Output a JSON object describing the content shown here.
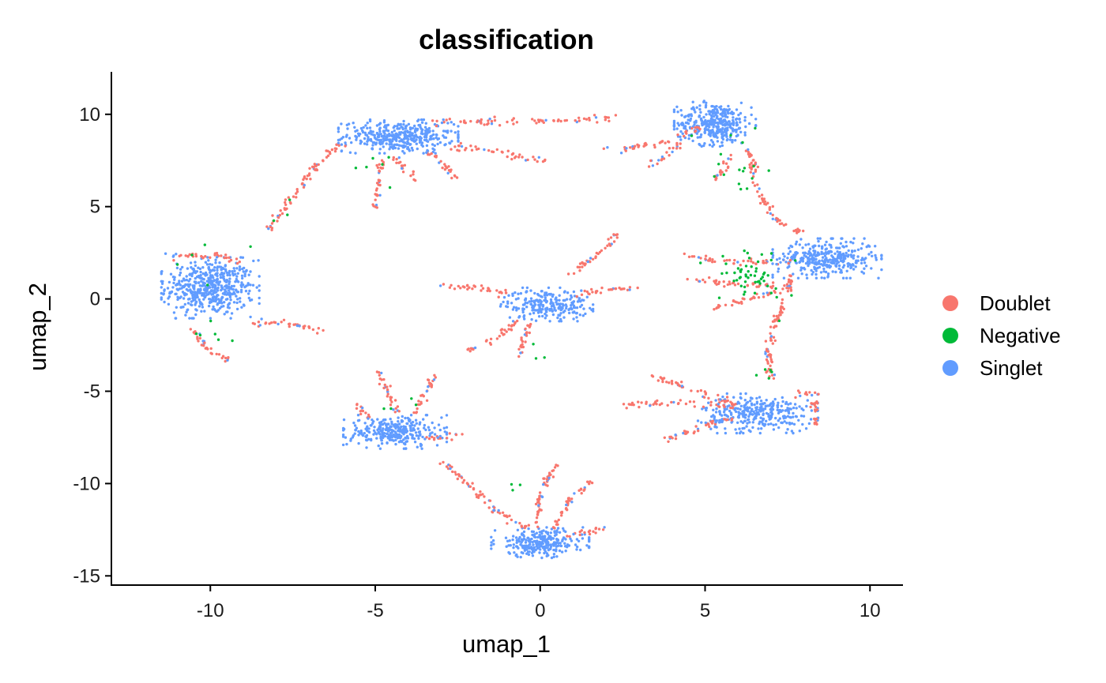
{
  "chart_data": {
    "type": "scatter",
    "title": "classification",
    "xlabel": "umap_1",
    "ylabel": "umap_2",
    "xlim": [
      -13,
      11
    ],
    "ylim": [
      -15.5,
      12.3
    ],
    "xticks": [
      -10,
      -5,
      0,
      5,
      10
    ],
    "yticks": [
      -15,
      -10,
      -5,
      0,
      5,
      10
    ],
    "grid": false,
    "legend": {
      "position": "right",
      "entries": [
        "Doublet",
        "Negative",
        "Singlet"
      ]
    },
    "colors": {
      "Doublet": "#F8766D",
      "Negative": "#00BA38",
      "Singlet": "#619CFF"
    },
    "series": [
      {
        "name": "Singlet",
        "clusters": [
          {
            "center": [
              -10.0,
              0.6
            ],
            "spread": [
              0.9,
              1.0
            ],
            "n": 520
          },
          {
            "center": [
              -4.3,
              8.8
            ],
            "spread": [
              1.1,
              0.55
            ],
            "n": 380
          },
          {
            "center": [
              5.3,
              9.5
            ],
            "spread": [
              0.75,
              0.75
            ],
            "n": 360
          },
          {
            "center": [
              8.7,
              2.2
            ],
            "spread": [
              1.0,
              0.65
            ],
            "n": 340
          },
          {
            "center": [
              0.2,
              -0.3
            ],
            "spread": [
              0.85,
              0.55
            ],
            "n": 240
          },
          {
            "center": [
              6.6,
              -6.2
            ],
            "spread": [
              1.1,
              0.65
            ],
            "n": 330
          },
          {
            "center": [
              -4.4,
              -7.2
            ],
            "spread": [
              0.95,
              0.55
            ],
            "n": 300
          },
          {
            "center": [
              0.0,
              -13.2
            ],
            "spread": [
              0.9,
              0.5
            ],
            "n": 280
          }
        ]
      },
      {
        "name": "Doublet",
        "trails": [
          [
            [
              -6.0,
              8.5
            ],
            [
              -6.8,
              7.2
            ],
            [
              -7.5,
              5.5
            ],
            [
              -8.2,
              3.8
            ]
          ],
          [
            [
              -3.2,
              9.6
            ],
            [
              -1.8,
              9.6
            ],
            [
              -0.6,
              9.6
            ]
          ],
          [
            [
              -2.6,
              8.3
            ],
            [
              -1.2,
              8.0
            ],
            [
              0.2,
              7.4
            ]
          ],
          [
            [
              -3.4,
              8.0
            ],
            [
              -2.5,
              6.5
            ]
          ],
          [
            [
              -4.8,
              7.5
            ],
            [
              -5.0,
              5.0
            ]
          ],
          [
            [
              -4.4,
              7.6
            ],
            [
              -3.7,
              6.4
            ]
          ],
          [
            [
              -0.2,
              9.6
            ],
            [
              1.2,
              9.7
            ],
            [
              2.2,
              9.8
            ]
          ],
          [
            [
              4.8,
              9.2
            ],
            [
              3.6,
              8.4
            ],
            [
              2.0,
              8.1
            ]
          ],
          [
            [
              4.2,
              8.3
            ],
            [
              3.3,
              7.2
            ]
          ],
          [
            [
              5.8,
              7.6
            ],
            [
              5.3,
              6.3
            ]
          ],
          [
            [
              6.3,
              8.2
            ],
            [
              6.6,
              5.9
            ],
            [
              7.2,
              4.2
            ],
            [
              8.0,
              3.5
            ]
          ],
          [
            [
              4.4,
              2.3
            ],
            [
              5.6,
              2.0
            ],
            [
              7.6,
              2.0
            ]
          ],
          [
            [
              4.4,
              1.1
            ],
            [
              5.8,
              0.8
            ],
            [
              7.3,
              0.7
            ]
          ],
          [
            [
              5.2,
              -0.5
            ],
            [
              6.2,
              -0.1
            ],
            [
              7.6,
              0.6
            ]
          ],
          [
            [
              7.6,
              1.2
            ],
            [
              7.2,
              -1.0
            ],
            [
              6.9,
              -2.8
            ],
            [
              7.0,
              -4.5
            ]
          ],
          [
            [
              3.4,
              -4.2
            ],
            [
              5.0,
              -5.1
            ],
            [
              6.0,
              -5.8
            ]
          ],
          [
            [
              2.5,
              -5.7
            ],
            [
              4.5,
              -5.6
            ],
            [
              6.0,
              -5.8
            ]
          ],
          [
            [
              3.8,
              -7.6
            ],
            [
              5.0,
              -6.8
            ],
            [
              6.2,
              -6.4
            ]
          ],
          [
            [
              7.8,
              -5.2
            ],
            [
              8.3,
              -5.1
            ],
            [
              8.4,
              -6.9
            ]
          ],
          [
            [
              -11.6,
              2.3
            ],
            [
              -9.7,
              2.4
            ],
            [
              -9.2,
              2.0
            ]
          ],
          [
            [
              -8.8,
              -1.3
            ],
            [
              -7.4,
              -1.4
            ],
            [
              -6.5,
              -1.9
            ]
          ],
          [
            [
              -10.6,
              -1.5
            ],
            [
              -10.1,
              -2.7
            ],
            [
              -9.4,
              -3.3
            ]
          ],
          [
            [
              -0.8,
              0.2
            ],
            [
              -1.8,
              0.6
            ],
            [
              -3.0,
              0.7
            ]
          ],
          [
            [
              0.9,
              1.3
            ],
            [
              1.9,
              2.6
            ],
            [
              2.3,
              3.5
            ]
          ],
          [
            [
              -0.6,
              -1.2
            ],
            [
              -1.5,
              -2.3
            ],
            [
              -2.2,
              -2.8
            ]
          ],
          [
            [
              -0.3,
              -1.4
            ],
            [
              -0.7,
              -3.2
            ]
          ],
          [
            [
              1.1,
              0.3
            ],
            [
              2.2,
              0.5
            ],
            [
              3.0,
              0.6
            ]
          ],
          [
            [
              -5.1,
              -6.6
            ],
            [
              -5.6,
              -5.7
            ]
          ],
          [
            [
              -4.3,
              -6.1
            ],
            [
              -4.9,
              -4.0
            ]
          ],
          [
            [
              -3.8,
              -6.2
            ],
            [
              -3.2,
              -4.2
            ]
          ],
          [
            [
              -3.4,
              -7.6
            ],
            [
              -2.3,
              -7.3
            ]
          ],
          [
            [
              -0.3,
              -12.5
            ],
            [
              -1.4,
              -11.4
            ],
            [
              -2.3,
              -9.8
            ],
            [
              -3.0,
              -8.8
            ]
          ],
          [
            [
              -0.1,
              -12.3
            ],
            [
              0.0,
              -10.5
            ],
            [
              0.5,
              -9.0
            ]
          ],
          [
            [
              0.4,
              -12.4
            ],
            [
              1.0,
              -10.6
            ],
            [
              1.6,
              -10.0
            ]
          ],
          [
            [
              0.8,
              -12.8
            ],
            [
              2.0,
              -12.4
            ]
          ]
        ]
      },
      {
        "name": "Negative",
        "regions": [
          {
            "center": [
              6.4,
              1.0
            ],
            "spread": [
              0.55,
              0.7
            ],
            "n": 55
          },
          {
            "center": [
              5.9,
              6.6
            ],
            "spread": [
              0.4,
              0.35
            ],
            "n": 12
          },
          {
            "center": [
              -4.9,
              7.2
            ],
            "spread": [
              0.4,
              0.4
            ],
            "n": 6
          },
          {
            "center": [
              -9.9,
              -1.9
            ],
            "spread": [
              0.4,
              0.5
            ],
            "n": 6
          },
          {
            "center": [
              6.8,
              -4.0
            ],
            "spread": [
              0.25,
              0.2
            ],
            "n": 5
          },
          {
            "center": [
              -0.6,
              -10.0
            ],
            "spread": [
              0.3,
              0.2
            ],
            "n": 3
          },
          {
            "center": [
              -4.2,
              -5.9
            ],
            "spread": [
              0.4,
              0.3
            ],
            "n": 4
          },
          {
            "center": [
              0.0,
              -2.3
            ],
            "spread": [
              0.6,
              0.6
            ],
            "n": 3
          },
          {
            "center": [
              -10.4,
              2.0
            ],
            "spread": [
              0.8,
              0.5
            ],
            "n": 5
          },
          {
            "center": [
              -8.0,
              5.0
            ],
            "spread": [
              0.6,
              0.4
            ],
            "n": 3
          },
          {
            "center": [
              5.6,
              9.0
            ],
            "spread": [
              0.8,
              0.5
            ],
            "n": 5
          }
        ]
      }
    ]
  }
}
